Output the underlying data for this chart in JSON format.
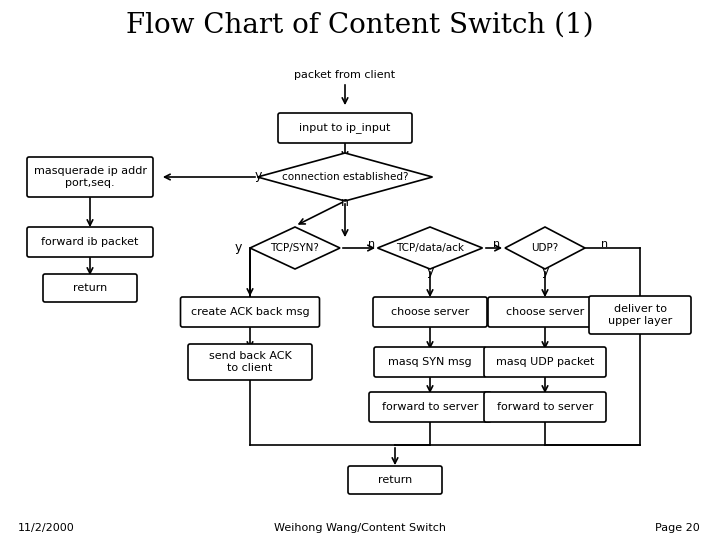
{
  "title": "Flow Chart of Content Switch (1)",
  "title_fontsize": 20,
  "bg_color": "#ffffff",
  "box_color": "#ffffff",
  "box_edge": "#000000",
  "text_color": "#000000",
  "font_size": 8,
  "footer_left": "11/2/2000",
  "footer_center": "Weihong Wang/Content Switch",
  "footer_right": "Page 20"
}
